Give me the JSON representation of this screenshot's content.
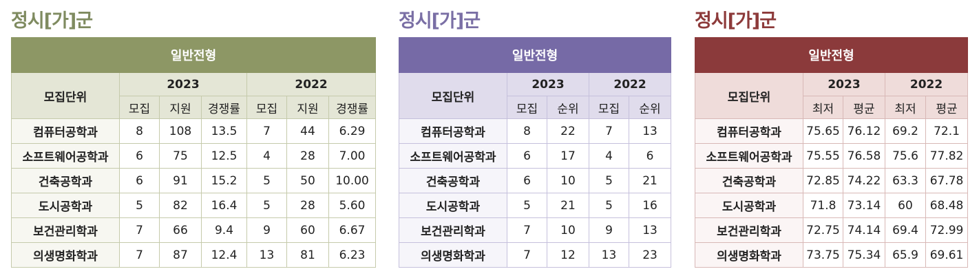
{
  "sections": [
    {
      "title": "정시[가]군",
      "header": "일반전형",
      "unit_label": "모집단위",
      "years": [
        "2023",
        "2022"
      ],
      "subheaders": [
        "모집",
        "지원",
        "경쟁률",
        "모집",
        "지원",
        "경쟁률"
      ],
      "rows": [
        [
          "컴퓨터공학과",
          "8",
          "108",
          "13.5",
          "7",
          "44",
          "6.29"
        ],
        [
          "소프트웨어공학과",
          "6",
          "75",
          "12.5",
          "4",
          "28",
          "7.00"
        ],
        [
          "건축공학과",
          "6",
          "91",
          "15.2",
          "5",
          "50",
          "10.00"
        ],
        [
          "도시공학과",
          "5",
          "82",
          "16.4",
          "5",
          "28",
          "5.60"
        ],
        [
          "보건관리학과",
          "7",
          "66",
          "9.4",
          "9",
          "60",
          "6.67"
        ],
        [
          "의생명화학과",
          "7",
          "87",
          "12.4",
          "13",
          "81",
          "6.23"
        ]
      ]
    },
    {
      "title": "정시[가]군",
      "header": "일반전형",
      "unit_label": "모집단위",
      "years": [
        "2023",
        "2022"
      ],
      "subheaders": [
        "모집",
        "순위",
        "모집",
        "순위"
      ],
      "rows": [
        [
          "컴퓨터공학과",
          "8",
          "22",
          "7",
          "13"
        ],
        [
          "소프트웨어공학과",
          "6",
          "17",
          "4",
          "6"
        ],
        [
          "건축공학과",
          "6",
          "10",
          "5",
          "21"
        ],
        [
          "도시공학과",
          "5",
          "21",
          "5",
          "16"
        ],
        [
          "보건관리학과",
          "7",
          "10",
          "9",
          "13"
        ],
        [
          "의생명화학과",
          "7",
          "12",
          "13",
          "23"
        ]
      ]
    },
    {
      "title": "정시[가]군",
      "header": "일반전형",
      "unit_label": "모집단위",
      "years": [
        "2023",
        "2022"
      ],
      "subheaders": [
        "최저",
        "평균",
        "최저",
        "평균"
      ],
      "rows": [
        [
          "컴퓨터공학과",
          "75.65",
          "76.12",
          "69.2",
          "72.1"
        ],
        [
          "소프트웨어공학과",
          "75.55",
          "76.58",
          "75.6",
          "77.82"
        ],
        [
          "건축공학과",
          "72.85",
          "74.22",
          "63.3",
          "67.78"
        ],
        [
          "도시공학과",
          "71.8",
          "73.14",
          "60",
          "68.48"
        ],
        [
          "보건관리학과",
          "72.75",
          "74.14",
          "69.4",
          "72.99"
        ],
        [
          "의생명화학과",
          "73.75",
          "75.34",
          "65.9",
          "69.61"
        ]
      ]
    }
  ]
}
